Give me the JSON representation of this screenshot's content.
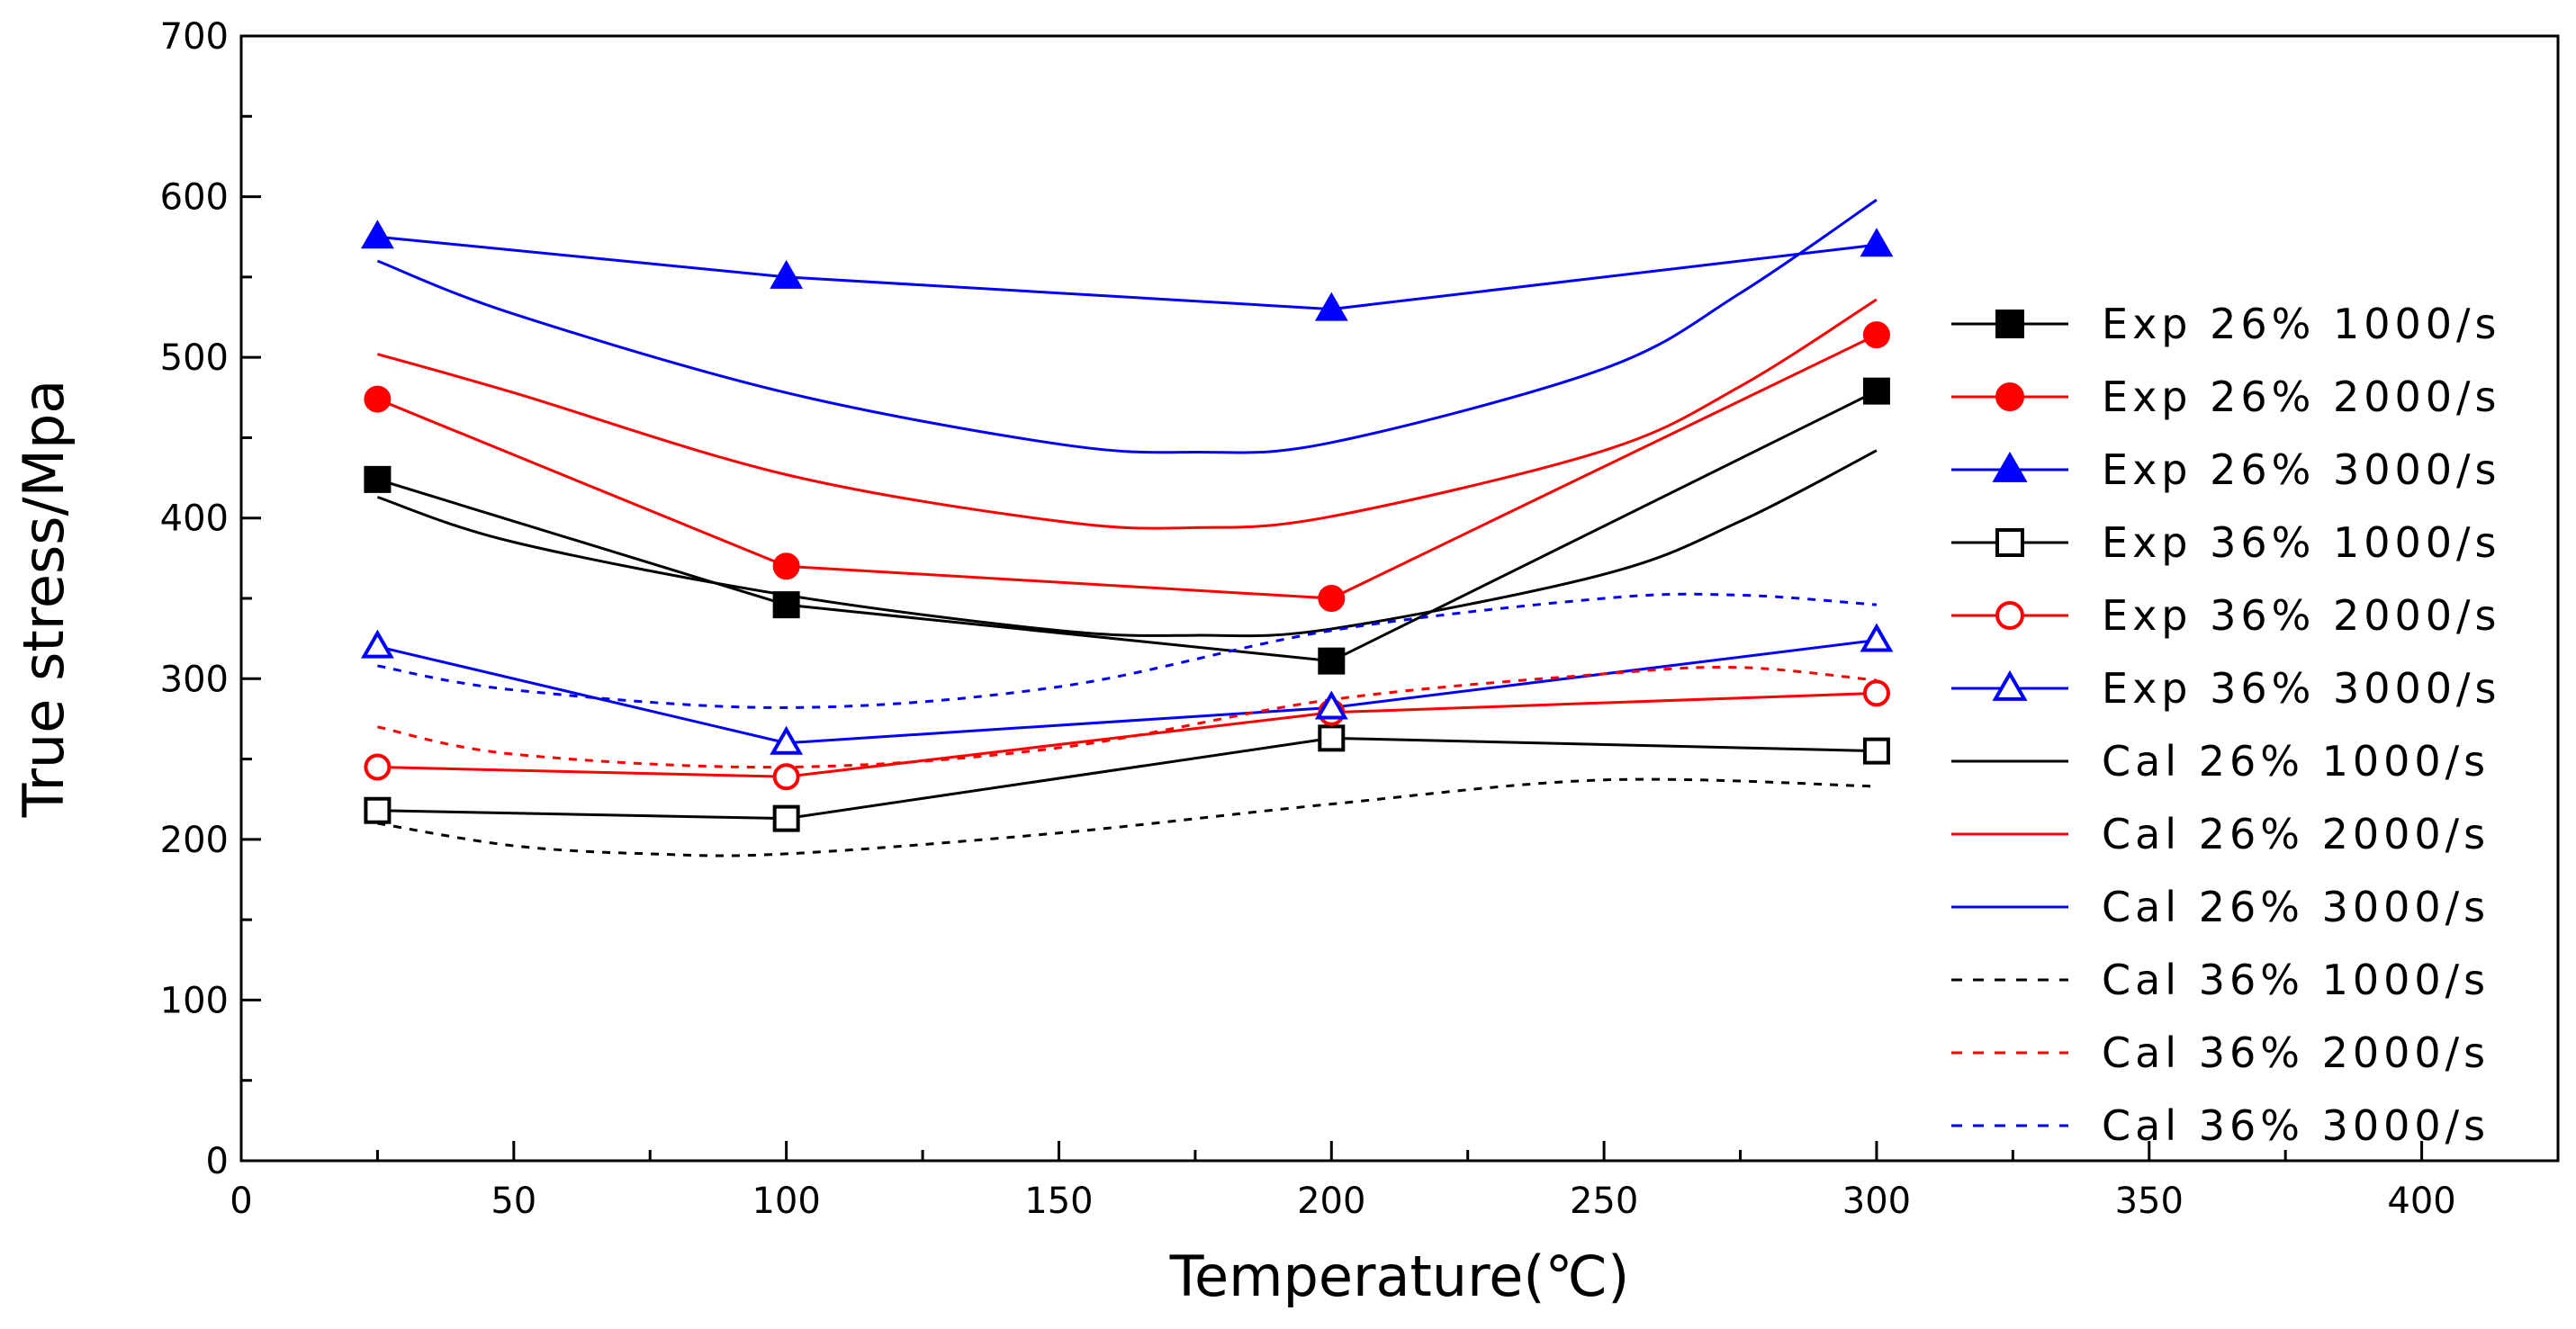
{
  "chart_data": {
    "type": "line",
    "title": "",
    "xlabel": "Temperature(℃)",
    "ylabel": "True stress/Mpa",
    "xlim": [
      0,
      425
    ],
    "ylim": [
      0,
      700
    ],
    "xticks": [
      0,
      50,
      100,
      150,
      200,
      250,
      300,
      350,
      400
    ],
    "yticks": [
      0,
      100,
      200,
      300,
      400,
      500,
      600,
      700
    ],
    "legend_position": "right",
    "series": [
      {
        "name": "Exp 26% 1000/s",
        "color": "#000000",
        "dash": "solid",
        "marker": "square",
        "filled": true,
        "x": [
          25,
          100,
          200,
          300
        ],
        "y": [
          424,
          346,
          311,
          479
        ]
      },
      {
        "name": "Exp 26% 2000/s",
        "color": "#ff0000",
        "dash": "solid",
        "marker": "circle",
        "filled": true,
        "x": [
          25,
          100,
          200,
          300
        ],
        "y": [
          474,
          370,
          350,
          514
        ]
      },
      {
        "name": "Exp 26% 3000/s",
        "color": "#0000ff",
        "dash": "solid",
        "marker": "triangle",
        "filled": true,
        "x": [
          25,
          100,
          200,
          300
        ],
        "y": [
          575,
          550,
          530,
          570
        ]
      },
      {
        "name": "Exp 36% 1000/s",
        "color": "#000000",
        "dash": "solid",
        "marker": "square",
        "filled": false,
        "x": [
          25,
          100,
          200,
          300
        ],
        "y": [
          218,
          213,
          263,
          255
        ]
      },
      {
        "name": "Exp 36% 2000/s",
        "color": "#ff0000",
        "dash": "solid",
        "marker": "circle",
        "filled": false,
        "x": [
          25,
          100,
          200,
          300
        ],
        "y": [
          245,
          239,
          279,
          291
        ]
      },
      {
        "name": "Exp 36% 3000/s",
        "color": "#0000ff",
        "dash": "solid",
        "marker": "triangle",
        "filled": false,
        "x": [
          25,
          100,
          200,
          300
        ],
        "y": [
          320,
          260,
          282,
          324
        ]
      },
      {
        "name": "Cal 26% 1000/s",
        "color": "#000000",
        "dash": "solid",
        "marker": "none",
        "filled": false,
        "x": [
          25,
          50,
          100,
          150,
          175,
          200,
          250,
          275,
          300
        ],
        "y": [
          413,
          385,
          352,
          330,
          327,
          331,
          365,
          398,
          442
        ]
      },
      {
        "name": "Cal 26% 2000/s",
        "color": "#ff0000",
        "dash": "solid",
        "marker": "none",
        "filled": false,
        "x": [
          25,
          50,
          100,
          150,
          175,
          200,
          250,
          275,
          300
        ],
        "y": [
          502,
          478,
          427,
          398,
          394,
          401,
          442,
          482,
          536
        ]
      },
      {
        "name": "Cal 26% 3000/s",
        "color": "#0000ff",
        "dash": "solid",
        "marker": "none",
        "filled": false,
        "x": [
          25,
          50,
          100,
          150,
          175,
          200,
          250,
          275,
          300
        ],
        "y": [
          560,
          527,
          478,
          446,
          441,
          447,
          493,
          540,
          598
        ]
      },
      {
        "name": "Cal 36% 1000/s",
        "color": "#000000",
        "dash": "dash",
        "marker": "none",
        "filled": false,
        "x": [
          25,
          50,
          75,
          100,
          150,
          200,
          250,
          300
        ],
        "y": [
          210,
          196,
          191,
          191,
          204,
          222,
          237,
          233
        ]
      },
      {
        "name": "Cal 36% 2000/s",
        "color": "#ff0000",
        "dash": "dash",
        "marker": "none",
        "filled": false,
        "x": [
          25,
          50,
          100,
          150,
          200,
          250,
          275,
          300
        ],
        "y": [
          270,
          253,
          245,
          257,
          287,
          303,
          307,
          299
        ]
      },
      {
        "name": "Cal 36% 3000/s",
        "color": "#0000ff",
        "dash": "dash",
        "marker": "none",
        "filled": false,
        "x": [
          25,
          50,
          100,
          150,
          200,
          250,
          275,
          300
        ],
        "y": [
          308,
          293,
          282,
          295,
          330,
          350,
          352,
          346
        ]
      }
    ]
  }
}
